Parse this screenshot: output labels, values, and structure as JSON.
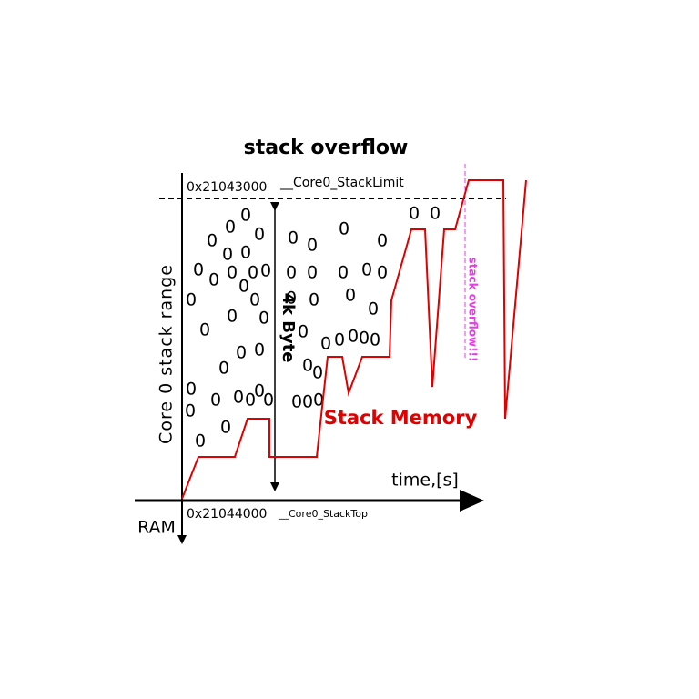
{
  "title": "stack overflow",
  "limit_address": "0x21043000",
  "limit_symbol": "__Core0_StackLimit",
  "y_axis_label": "Core 0 stack range",
  "size_label": "4k Byte",
  "series_label": "Stack Memory",
  "x_axis_label": "time,[s]",
  "memory_label": "RAM",
  "top_address": "0x21044000",
  "top_symbol": "__Core0_StackTop",
  "overflow_label": "stack overflow!!!",
  "memory_bit": "0"
}
